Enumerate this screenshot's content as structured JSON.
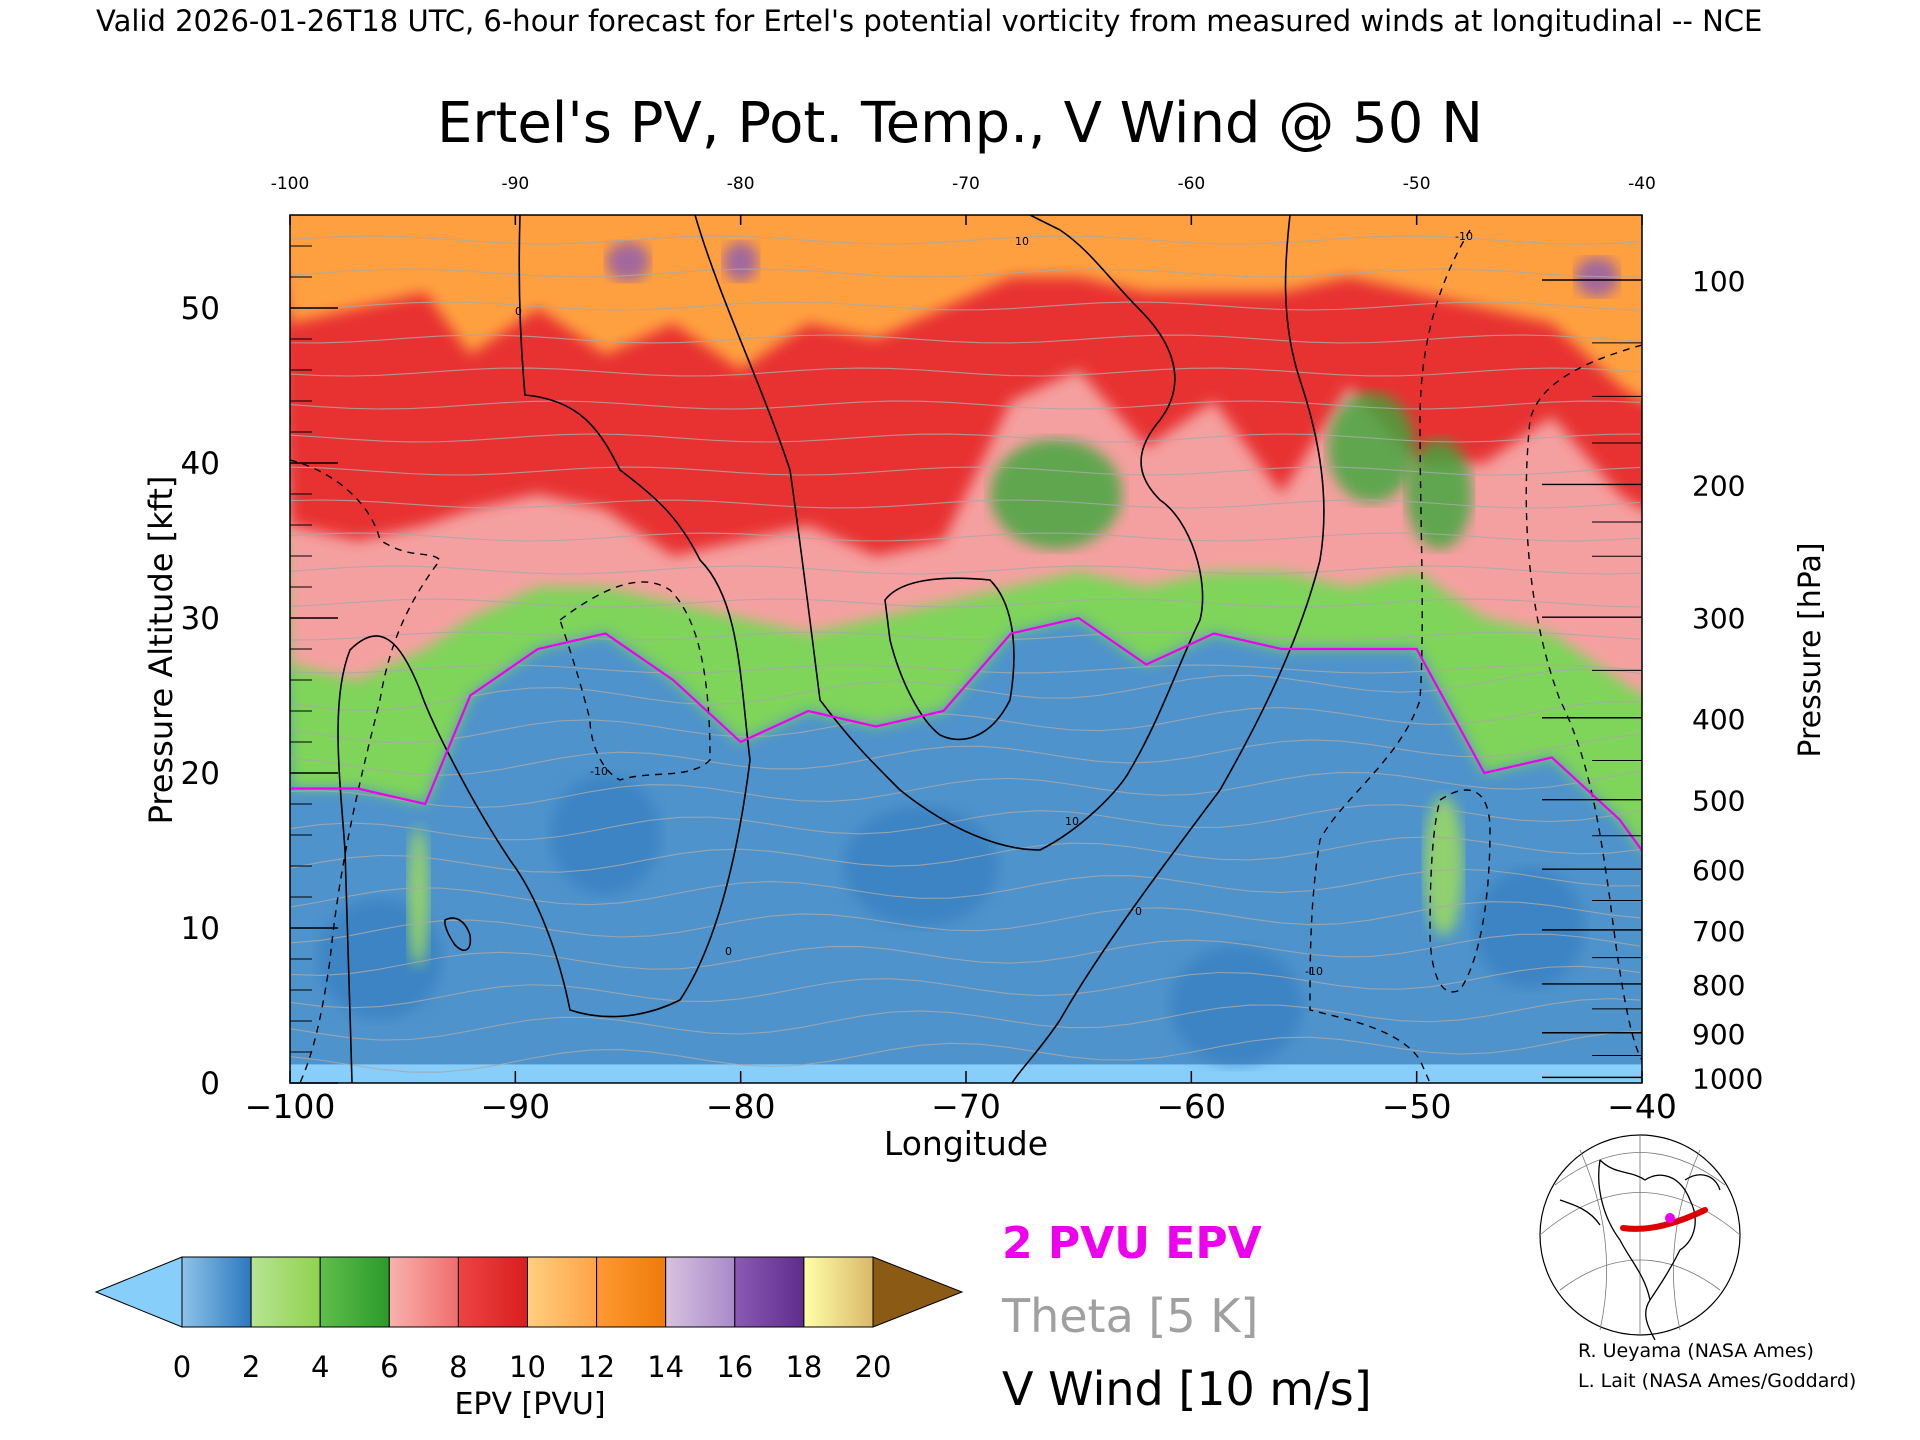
{
  "header": "Valid 2026-01-26T18 UTC, 6-hour forecast for Ertel's potential vorticity from measured winds at longitudinal -- NCE",
  "chart_data": {
    "type": "heatmap",
    "title": "Ertel's PV, Pot. Temp., V Wind @ 50 N",
    "xlabel": "Longitude",
    "ylabel": "Pressure Altitude [kft]",
    "y2label": "Pressure [hPa]",
    "xlim": [
      -100,
      -40
    ],
    "ylim": [
      0,
      56
    ],
    "x_ticks": [
      -100,
      -90,
      -80,
      -70,
      -60,
      -50,
      -40
    ],
    "x_tick_labels": [
      "−100",
      "−90",
      "−80",
      "−70",
      "−60",
      "−50",
      "−40"
    ],
    "x_top_tick_labels": [
      "-100",
      "-90",
      "-80",
      "-70",
      "-60",
      "-50",
      "-40"
    ],
    "y_ticks": [
      0,
      10,
      20,
      30,
      40,
      50
    ],
    "y_tick_labels": [
      "0",
      "10",
      "20",
      "30",
      "40",
      "50"
    ],
    "pressure_ticks": [
      {
        "hpa": 100,
        "label": "100"
      },
      {
        "hpa": 200,
        "label": "200"
      },
      {
        "hpa": 300,
        "label": "300"
      },
      {
        "hpa": 400,
        "label": "400"
      },
      {
        "hpa": 500,
        "label": "500"
      },
      {
        "hpa": 600,
        "label": "600"
      },
      {
        "hpa": 700,
        "label": "700"
      },
      {
        "hpa": 800,
        "label": "800"
      },
      {
        "hpa": 900,
        "label": "900"
      },
      {
        "hpa": 1000,
        "label": "1000"
      }
    ],
    "colorbar": {
      "label": "EPV [PVU]",
      "ticks": [
        "0",
        "2",
        "4",
        "6",
        "8",
        "10",
        "12",
        "14",
        "16",
        "18",
        "20"
      ],
      "min_extend_color": "#87cefa",
      "max_extend_color": "#8b5a14",
      "bins": [
        {
          "from": 0,
          "to": 2,
          "colors": [
            "#8ec3e8",
            "#2b78c0"
          ]
        },
        {
          "from": 2,
          "to": 4,
          "colors": [
            "#b7e494",
            "#8fd24e"
          ]
        },
        {
          "from": 4,
          "to": 6,
          "colors": [
            "#5fbf4a",
            "#2b9a2b"
          ]
        },
        {
          "from": 6,
          "to": 8,
          "colors": [
            "#f8b2ad",
            "#f06d6d"
          ]
        },
        {
          "from": 8,
          "to": 10,
          "colors": [
            "#ee4444",
            "#d91e1e"
          ]
        },
        {
          "from": 10,
          "to": 12,
          "colors": [
            "#ffcf80",
            "#ffa347"
          ]
        },
        {
          "from": 12,
          "to": 14,
          "colors": [
            "#ff9933",
            "#ee7b0a"
          ]
        },
        {
          "from": 14,
          "to": 16,
          "colors": [
            "#d7c2e0",
            "#a88ac8"
          ]
        },
        {
          "from": 16,
          "to": 18,
          "colors": [
            "#8a5ab4",
            "#5e2d8c"
          ]
        },
        {
          "from": 18,
          "to": 20,
          "colors": [
            "#ffffa8",
            "#d9b86a"
          ]
        }
      ]
    },
    "legend": {
      "placement": "bottom-center",
      "entries": [
        {
          "label": "2 PVU EPV",
          "color": "#ee00ee"
        },
        {
          "label": "Theta [5 K]",
          "color": "#a0a0a0"
        },
        {
          "label": "V Wind [10 m/s]",
          "color": "#000000"
        }
      ]
    },
    "contour_labels": [
      "0",
      "10",
      "-10"
    ],
    "pv_levels_kft": [
      {
        "lon": -100,
        "blue_top": 19,
        "green_top": 27,
        "red_bottom": 36,
        "orange_bottom": 49
      },
      {
        "lon": -97,
        "blue_top": 19,
        "green_top": 26,
        "red_bottom": 35,
        "orange_bottom": 50
      },
      {
        "lon": -94,
        "blue_top": 18,
        "green_top": 28,
        "red_bottom": 36,
        "orange_bottom": 51
      },
      {
        "lon": -92,
        "blue_top": 25,
        "green_top": 30,
        "red_bottom": 37,
        "orange_bottom": 47
      },
      {
        "lon": -89,
        "blue_top": 28,
        "green_top": 32,
        "red_bottom": 38,
        "orange_bottom": 50
      },
      {
        "lon": -86,
        "blue_top": 29,
        "green_top": 32,
        "red_bottom": 37,
        "orange_bottom": 47
      },
      {
        "lon": -83,
        "blue_top": 26,
        "green_top": 31,
        "red_bottom": 34,
        "orange_bottom": 49
      },
      {
        "lon": -80,
        "blue_top": 22,
        "green_top": 30,
        "red_bottom": 35,
        "orange_bottom": 46
      },
      {
        "lon": -77,
        "blue_top": 24,
        "green_top": 29,
        "red_bottom": 36,
        "orange_bottom": 49
      },
      {
        "lon": -74,
        "blue_top": 23,
        "green_top": 30,
        "red_bottom": 34,
        "orange_bottom": 48
      },
      {
        "lon": -71,
        "blue_top": 24,
        "green_top": 31,
        "red_bottom": 35,
        "orange_bottom": 50
      },
      {
        "lon": -68,
        "blue_top": 29,
        "green_top": 32,
        "red_bottom": 44,
        "orange_bottom": 52
      },
      {
        "lon": -65,
        "blue_top": 30,
        "green_top": 33,
        "red_bottom": 46,
        "orange_bottom": 52
      },
      {
        "lon": -62,
        "blue_top": 27,
        "green_top": 32,
        "red_bottom": 41,
        "orange_bottom": 51
      },
      {
        "lon": -59,
        "blue_top": 29,
        "green_top": 33,
        "red_bottom": 44,
        "orange_bottom": 51
      },
      {
        "lon": -56,
        "blue_top": 28,
        "green_top": 33,
        "red_bottom": 38,
        "orange_bottom": 51
      },
      {
        "lon": -53,
        "blue_top": 28,
        "green_top": 32,
        "red_bottom": 45,
        "orange_bottom": 52
      },
      {
        "lon": -50,
        "blue_top": 28,
        "green_top": 33,
        "red_bottom": 40,
        "orange_bottom": 51
      },
      {
        "lon": -47,
        "blue_top": 20,
        "green_top": 30,
        "red_bottom": 40,
        "orange_bottom": 50
      },
      {
        "lon": -44,
        "blue_top": 21,
        "green_top": 29,
        "red_bottom": 43,
        "orange_bottom": 49
      },
      {
        "lon": -41,
        "blue_top": 17,
        "green_top": 26,
        "red_bottom": 38,
        "orange_bottom": 45
      },
      {
        "lon": -40,
        "blue_top": 15,
        "green_top": 25,
        "red_bottom": 37,
        "orange_bottom": 44
      }
    ]
  },
  "inset_map": {
    "description_shown": false,
    "track_color": "#dd0000",
    "marker_color": "#ee00ee"
  },
  "credits": [
    "R. Ueyama (NASA Ames)",
    "L. Lait (NASA Ames/Goddard)"
  ]
}
